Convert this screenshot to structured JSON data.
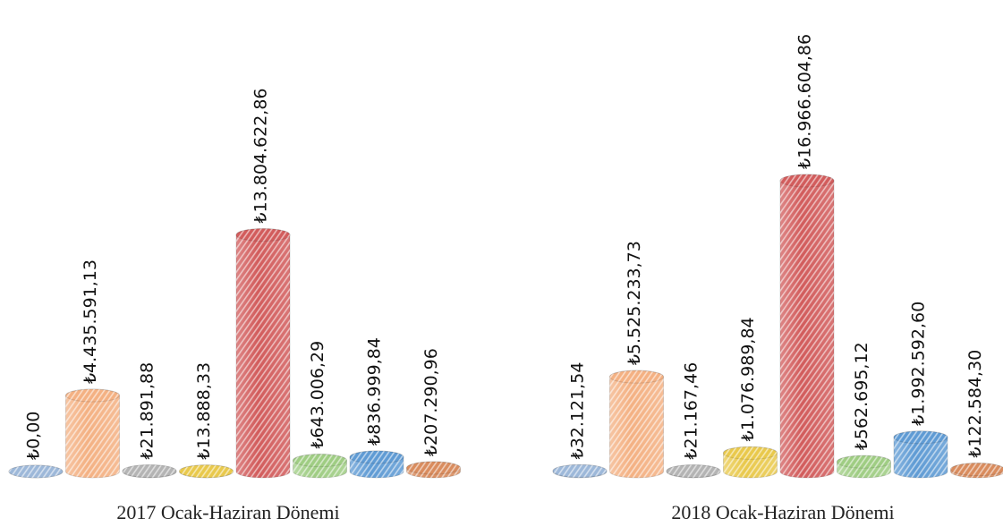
{
  "chart_data": {
    "type": "bar",
    "categories": [
      "2017 Ocak-Haziran Dönemi",
      "2018 Ocak-Haziran Dönemi"
    ],
    "series": [
      {
        "color": "#9db8d9",
        "values": [
          0,
          32121.54
        ],
        "value_labels": [
          "₺0,00",
          "₺32.121,54"
        ]
      },
      {
        "color": "#f4b183",
        "values": [
          4435591.13,
          5525233.73
        ],
        "value_labels": [
          "₺4.435.591,13",
          "₺5.525.233,73"
        ]
      },
      {
        "color": "#b4b4b4",
        "values": [
          21891.88,
          21167.46
        ],
        "value_labels": [
          "₺21.891,88",
          "₺21.167,46"
        ]
      },
      {
        "color": "#e9c94c",
        "values": [
          13888.33,
          1076989.84
        ],
        "value_labels": [
          "₺13.888,33",
          "₺1.076.989,84"
        ]
      },
      {
        "color": "#d25c5c",
        "values": [
          13804622.86,
          16966604.86
        ],
        "value_labels": [
          "₺13.804.622,86",
          "₺16.966.604,86"
        ]
      },
      {
        "color": "#9fcd83",
        "values": [
          643006.29,
          562695.12
        ],
        "value_labels": [
          "₺643.006,29",
          "₺562.695,12"
        ]
      },
      {
        "color": "#5f9bd4",
        "values": [
          836999.84,
          1992592.6
        ],
        "value_labels": [
          "₺836.999,84",
          "₺1.992.592,60"
        ]
      },
      {
        "color": "#d98c5e",
        "values": [
          207290.96,
          122584.3
        ],
        "value_labels": [
          "₺207.290,96",
          "₺122.584,30"
        ]
      }
    ]
  }
}
